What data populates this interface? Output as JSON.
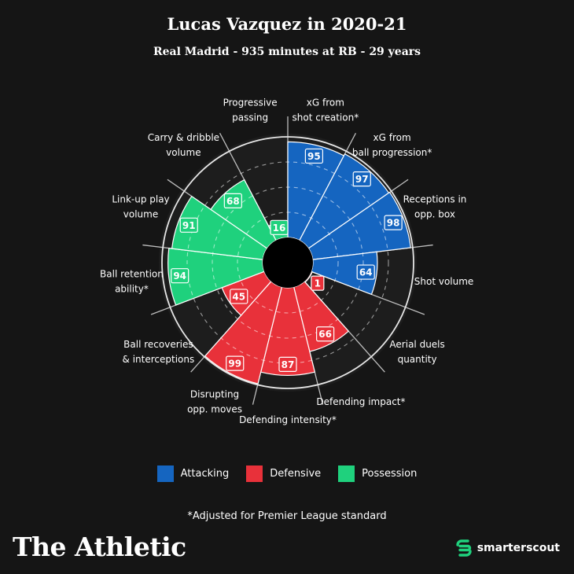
{
  "header": {
    "title": "Lucas Vazquez in 2020-21",
    "subtitle": "Real Madrid - 935 minutes at RB - 29 years"
  },
  "colors": {
    "attacking": "#1565c0",
    "defensive": "#e8313a",
    "possession": "#1fd17d",
    "background": "#151515"
  },
  "chart_data": {
    "type": "radar",
    "scale_max": 100,
    "rings": [
      25,
      50,
      75,
      100
    ],
    "title": "Lucas Vazquez in 2020-21",
    "subtitle": "Real Madrid - 935 minutes at RB - 29 years",
    "metrics": [
      {
        "label": [
          "xG from",
          "shot creation*"
        ],
        "value": 95,
        "category": "Attacking"
      },
      {
        "label": [
          "xG from",
          "ball progression*"
        ],
        "value": 97,
        "category": "Attacking"
      },
      {
        "label": [
          "Receptions in",
          "opp. box"
        ],
        "value": 98,
        "category": "Attacking"
      },
      {
        "label": [
          "Shot volume"
        ],
        "value": 64,
        "category": "Attacking"
      },
      {
        "label": [
          "Aerial duels",
          "quantity"
        ],
        "value": 1,
        "category": "Defensive"
      },
      {
        "label": [
          "Defending impact*"
        ],
        "value": 66,
        "category": "Defensive"
      },
      {
        "label": [
          "Defending intensity*"
        ],
        "value": 87,
        "category": "Defensive"
      },
      {
        "label": [
          "Disrupting",
          "opp. moves"
        ],
        "value": 99,
        "category": "Defensive"
      },
      {
        "label": [
          "Ball recoveries",
          "& interceptions"
        ],
        "value": 45,
        "category": "Defensive"
      },
      {
        "label": [
          "Ball retention",
          "ability*"
        ],
        "value": 94,
        "category": "Possession"
      },
      {
        "label": [
          "Link-up play",
          "volume"
        ],
        "value": 91,
        "category": "Possession"
      },
      {
        "label": [
          "Carry & dribble",
          "volume"
        ],
        "value": 68,
        "category": "Possession"
      },
      {
        "label": [
          "Progressive",
          "passing"
        ],
        "value": 16,
        "category": "Possession"
      }
    ],
    "legend": {
      "position": "bottom",
      "entries": [
        "Attacking",
        "Defensive",
        "Possession"
      ]
    }
  },
  "legend": {
    "attacking": "Attacking",
    "defensive": "Defensive",
    "possession": "Possession"
  },
  "footnote": "*Adjusted for Premier League standard",
  "brand": "The Athletic",
  "partner": "smarterscout"
}
